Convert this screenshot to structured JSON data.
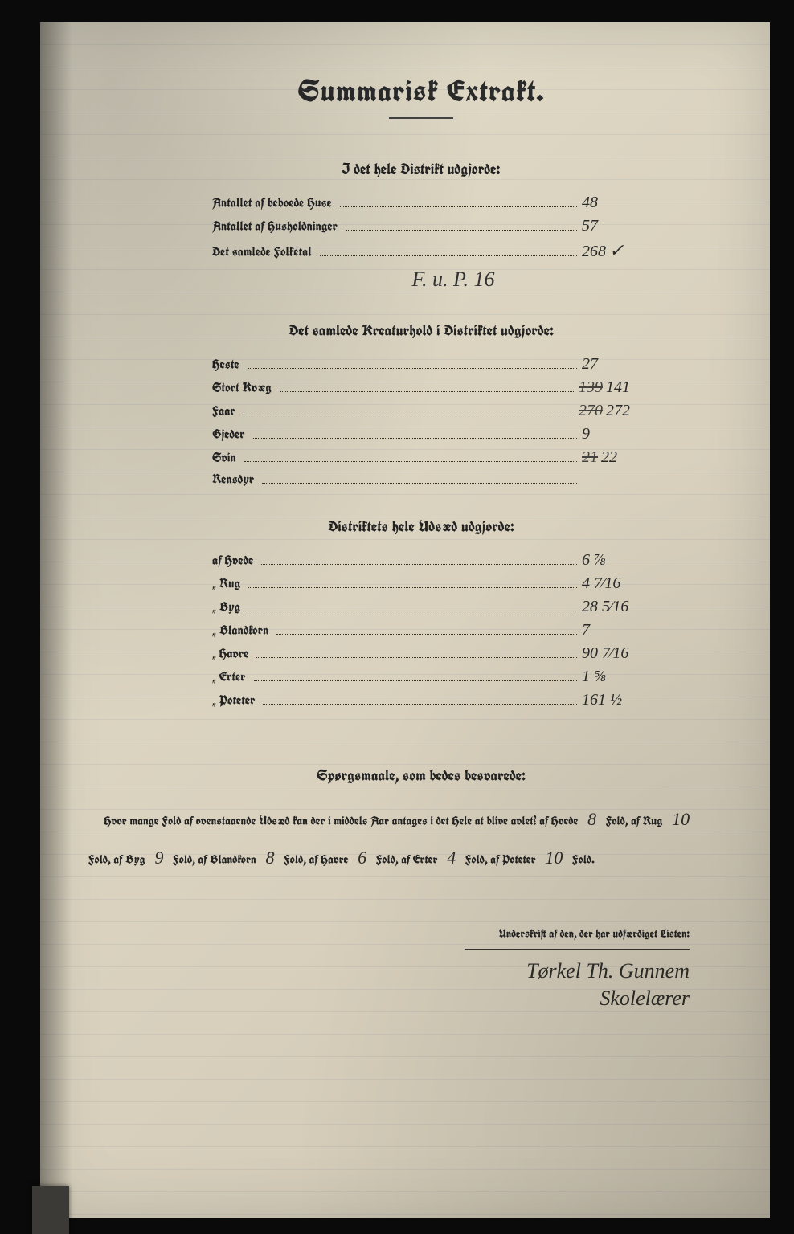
{
  "title": "Summarisk Extrakt.",
  "section1": {
    "heading": "I det hele Distrikt udgjorde:",
    "rows": [
      {
        "label": "Antallet af beboede Huse",
        "value": "48"
      },
      {
        "label": "Antallet af Husholdninger",
        "value": "57"
      },
      {
        "label": "Det samlede Folketal",
        "value": "268",
        "mark": "✓"
      }
    ],
    "annotation": "F. u. P.  16"
  },
  "section2": {
    "heading": "Det samlede Kreaturhold i Distriktet udgjorde:",
    "rows": [
      {
        "label": "Heste",
        "value": "27"
      },
      {
        "label": "Stort Kvæg",
        "strike": "139",
        "value": "141"
      },
      {
        "label": "Faar",
        "strike": "270",
        "value": "272"
      },
      {
        "label": "Gjeder",
        "value": "9"
      },
      {
        "label": "Svin",
        "strike": "21",
        "value": "22"
      },
      {
        "label": "Rensdyr",
        "value": ""
      }
    ]
  },
  "section3": {
    "heading": "Distriktets hele Udsæd udgjorde:",
    "rows": [
      {
        "label": "af Hvede",
        "value": "6 ⅞"
      },
      {
        "label": "„ Rug",
        "value": "4 7⁄16"
      },
      {
        "label": "„ Byg",
        "value": "28 5⁄16"
      },
      {
        "label": "„ Blandkorn",
        "value": "7"
      },
      {
        "label": "„ Havre",
        "value": "90 7⁄16"
      },
      {
        "label": "„ Erter",
        "value": "1 ⅝"
      },
      {
        "label": "„ Poteter",
        "value": "161 ½"
      }
    ]
  },
  "questions": {
    "heading": "Spørgsmaale, som bedes besvarede:",
    "intro": "Hvor mange Fold af ovenstaaende Udsæd kan der i middels Aar antages i det Hele at blive avlet?",
    "parts": [
      {
        "label": "af Hvede",
        "value": "8",
        "unit": "Fold,"
      },
      {
        "label": "af Rug",
        "value": "10",
        "unit": "Fold,"
      },
      {
        "label": "af Byg",
        "value": "9",
        "unit": "Fold,"
      },
      {
        "label": "af Blandkorn",
        "value": "8",
        "unit": "Fold,"
      },
      {
        "label": "af Havre",
        "value": "6",
        "unit": "Fold,"
      },
      {
        "label": "af Erter",
        "value": "4",
        "unit": "Fold,"
      },
      {
        "label": "af Poteter",
        "value": "10",
        "unit": "Fold."
      }
    ]
  },
  "signature": {
    "label": "Underskrift af den, der har udfærdiget Listen:",
    "line1": "Tørkel Th. Gunnem",
    "line2": "Skolelærer"
  },
  "colors": {
    "page_bg": "#ddd6c3",
    "ink": "#2a2a2a",
    "frame": "#0a0a0a"
  }
}
